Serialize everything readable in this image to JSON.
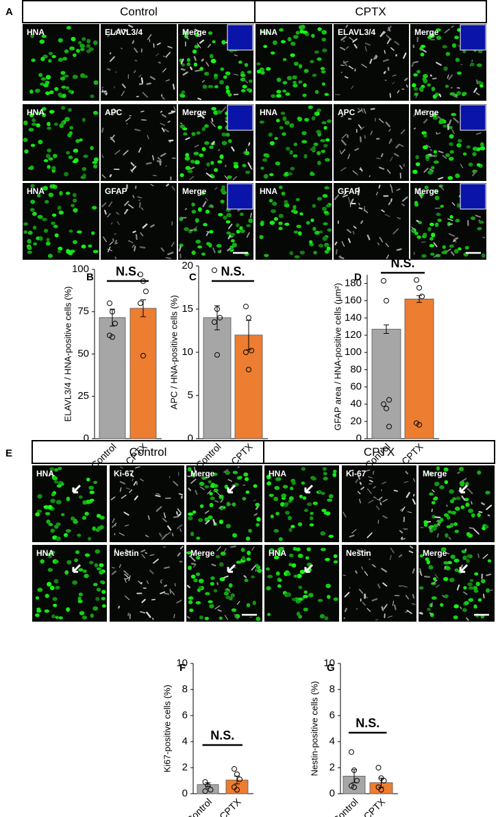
{
  "panel_a": {
    "label": "A",
    "headers": [
      "Control",
      "CPTX"
    ],
    "rows": [
      [
        "HNA",
        "ELAVL3/4",
        "Merge",
        "HNA",
        "ELAVL3/4",
        "Merge"
      ],
      [
        "HNA",
        "APC",
        "Merge",
        "HNA",
        "APC",
        "Merge"
      ],
      [
        "HNA",
        "GFAP",
        "Merge",
        "HNA",
        "GFAP",
        "Merge"
      ]
    ]
  },
  "panel_e": {
    "label": "E",
    "headers": [
      "Control",
      "CPTX"
    ],
    "rows": [
      [
        "HNA",
        "Ki-67",
        "Merge",
        "HNA",
        "Ki-67",
        "Merge"
      ],
      [
        "HNA",
        "Nestin",
        "Merge",
        "HNA",
        "Nestin",
        "Merge"
      ]
    ]
  },
  "chart_data": [
    {
      "type": "bar",
      "label": "B",
      "ylabel": "ELAVL3/4 / HNA-positive cells (%)",
      "annotation": "N.S.",
      "categories": [
        "Control",
        "CPTX"
      ],
      "colors": [
        "#a6a6a6",
        "#ed7d31"
      ],
      "values": [
        71.5,
        77
      ],
      "errors": [
        5,
        5
      ],
      "points": [
        [
          80,
          75,
          68,
          61,
          60
        ],
        [
          97,
          93,
          87,
          80,
          49
        ]
      ],
      "ylim": [
        0,
        100
      ],
      "yticks": [
        0,
        25,
        50,
        75,
        100
      ]
    },
    {
      "type": "bar",
      "label": "C",
      "ylabel": "APC / HNA-positive cells (%)",
      "annotation": "N.S.",
      "categories": [
        "Control",
        "CPTX"
      ],
      "colors": [
        "#a6a6a6",
        "#ed7d31"
      ],
      "values": [
        14,
        12
      ],
      "errors": [
        1.4,
        1.7
      ],
      "points": [
        [
          19.5,
          15,
          14,
          13.5,
          9.7
        ],
        [
          15.3,
          14,
          10.2,
          10,
          8
        ]
      ],
      "ylim": [
        0,
        20
      ],
      "yticks": [
        0,
        5,
        10,
        15,
        20
      ]
    },
    {
      "type": "bar",
      "label": "D",
      "ylabel": "GFAP area / HNA-positive cells (μm²)",
      "annotation": "N.S.",
      "categories": [
        "Control",
        "CPTX"
      ],
      "colors": [
        "#a6a6a6",
        "#ed7d31"
      ],
      "values": [
        127,
        162
      ],
      "errors": [
        5,
        4
      ],
      "points": [
        [
          183,
          160,
          45,
          40,
          35,
          14
        ],
        [
          184,
          175,
          165,
          18,
          16
        ]
      ],
      "ylim": [
        0,
        190
      ],
      "yticks": [
        0,
        20,
        40,
        60,
        80,
        100,
        120,
        140,
        160,
        180
      ]
    },
    {
      "type": "bar",
      "label": "F",
      "ylabel": "Ki67-positive cells (%)",
      "annotation": "N.S.",
      "categories": [
        "Control",
        "CPTX"
      ],
      "colors": [
        "#a6a6a6",
        "#ed7d31"
      ],
      "values": [
        0.7,
        1.05
      ],
      "errors": [
        0.15,
        0.3
      ],
      "points": [
        [
          0.9,
          0.6,
          0.3,
          0.2
        ],
        [
          1.9,
          1.5,
          1.1,
          0.5,
          0.3
        ]
      ],
      "ylim": [
        0,
        10
      ],
      "yticks": [
        0,
        2,
        4,
        6,
        8,
        10
      ]
    },
    {
      "type": "bar",
      "label": "G",
      "ylabel": "Nestin-positive cells (%)",
      "annotation": "N.S.",
      "categories": [
        "Control",
        "CPTX"
      ],
      "colors": [
        "#a6a6a6",
        "#ed7d31"
      ],
      "values": [
        1.35,
        0.85
      ],
      "errors": [
        0.5,
        0.35
      ],
      "points": [
        [
          3.2,
          1.8,
          1.0,
          0.6,
          0.5
        ],
        [
          2.0,
          1.2,
          1.0,
          0.5,
          0.3
        ]
      ],
      "ylim": [
        0,
        10
      ],
      "yticks": [
        0,
        2,
        4,
        6,
        8,
        10
      ]
    }
  ]
}
